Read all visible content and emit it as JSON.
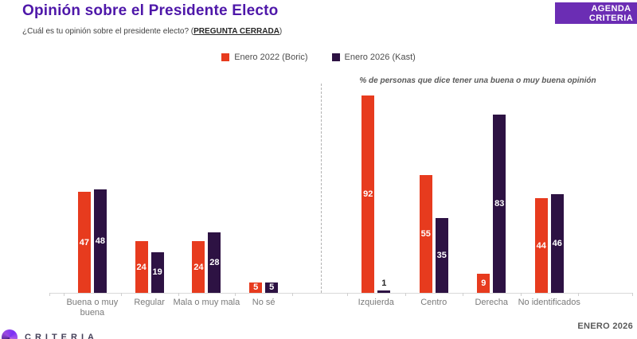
{
  "header": {
    "title": "Opinión sobre el Presidente Electo",
    "subtitle_prefix": "¿Cuál es tu opinión sobre el presidente electo? (",
    "subtitle_emphasis": "PREGUNTA CERRADA",
    "subtitle_suffix": ")",
    "agenda_button_label": "AGENDA CRITERIA"
  },
  "legend": [
    {
      "label": "Enero 2022 (Boric)",
      "color": "#e73b1e"
    },
    {
      "label": "Enero 2026 (Kast)",
      "color": "#2d1243"
    }
  ],
  "annotation": "% de personas que dice tener una buena o muy buena opinión",
  "footer": {
    "period_label": "ENERO 2026",
    "logo_text": "CRITERIA"
  },
  "colors": {
    "series_2022": "#e73b1e",
    "series_2026": "#2d1243",
    "title": "#4e17a9",
    "button": "#6b2db4"
  },
  "chart_data": [
    {
      "type": "bar",
      "title": "",
      "categories": [
        "Buena o muy buena",
        "Regular",
        "Mala o muy mala",
        "No sé"
      ],
      "series": [
        {
          "name": "Enero 2022 (Boric)",
          "values": [
            47,
            24,
            24,
            5
          ]
        },
        {
          "name": "Enero 2026 (Kast)",
          "values": [
            48,
            19,
            28,
            5
          ]
        }
      ],
      "xlabel": "",
      "ylabel": "",
      "ylim": [
        0,
        100
      ],
      "unit": "%",
      "grid": false,
      "legend_position": "top-center"
    },
    {
      "type": "bar",
      "title": "% de personas que dice tener una buena o muy buena opinión",
      "categories": [
        "Izquierda",
        "Centro",
        "Derecha",
        "No identificados"
      ],
      "series": [
        {
          "name": "Enero 2022 (Boric)",
          "values": [
            92,
            55,
            9,
            44
          ]
        },
        {
          "name": "Enero 2026 (Kast)",
          "values": [
            1,
            35,
            83,
            46
          ]
        }
      ],
      "xlabel": "",
      "ylabel": "",
      "ylim": [
        0,
        100
      ],
      "unit": "%",
      "grid": false,
      "legend_position": "top-center"
    }
  ]
}
